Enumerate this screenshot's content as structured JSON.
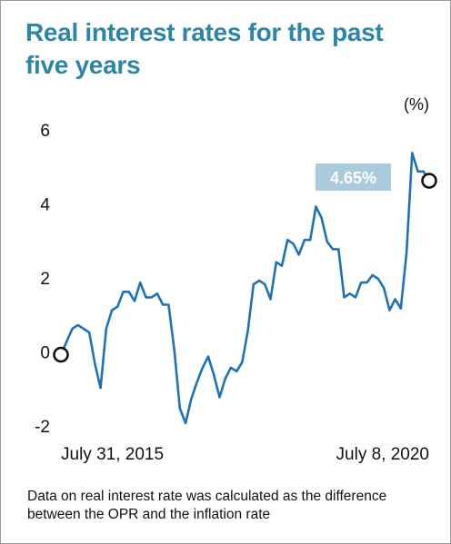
{
  "title": "Real interest rates for the past five years",
  "footnote": "Data on real interest rate was calculated as the difference between the OPR and the inflation rate",
  "colors": {
    "title": "#2e86a6",
    "line": "#1f72b8",
    "callout_bg": "#a9cbdc"
  },
  "chart_data": {
    "type": "line",
    "title": "Real interest rates for the past five years",
    "unit_label": "(%)",
    "xlabel": "",
    "ylabel": "",
    "ylim": [
      -2,
      6
    ],
    "yticks": [
      6,
      4,
      2,
      0,
      -2
    ],
    "ytick_labels": [
      "6",
      "4",
      "2",
      "0",
      "-2"
    ],
    "xtick_labels": [
      "July 31, 2015",
      "July 8, 2020"
    ],
    "grid": false,
    "legend": "none",
    "callout": {
      "text": "4.65%",
      "value": 4.65
    },
    "series": [
      {
        "values": [
          -0.05,
          0.3,
          0.65,
          0.75,
          0.65,
          0.55,
          -0.3,
          -0.95,
          0.65,
          1.15,
          1.25,
          1.65,
          1.65,
          1.4,
          1.9,
          1.5,
          1.5,
          1.6,
          1.3,
          1.3,
          0.1,
          -1.5,
          -1.9,
          -1.25,
          -0.8,
          -0.4,
          -0.1,
          -0.6,
          -1.2,
          -0.7,
          -0.4,
          -0.5,
          -0.25,
          0.6,
          1.85,
          1.95,
          1.85,
          1.45,
          2.45,
          2.35,
          3.05,
          2.95,
          2.65,
          3.05,
          3.05,
          3.95,
          3.65,
          3.0,
          2.8,
          2.8,
          1.5,
          1.6,
          1.5,
          1.9,
          1.9,
          2.1,
          2.0,
          1.75,
          1.15,
          1.45,
          1.2,
          2.7,
          5.4,
          4.9,
          4.9,
          4.65
        ]
      }
    ]
  }
}
